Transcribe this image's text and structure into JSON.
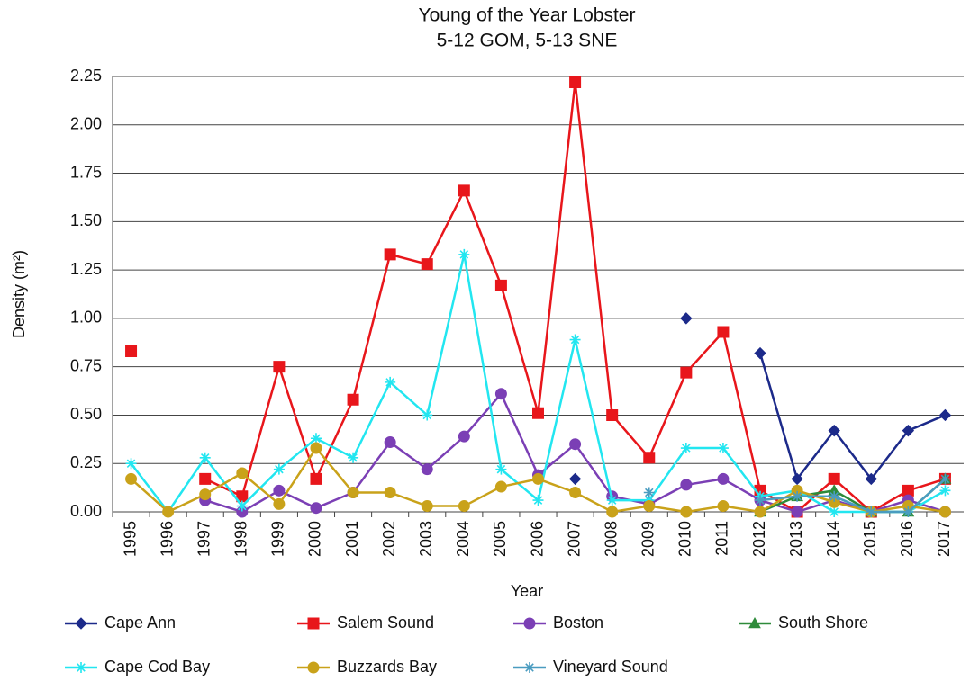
{
  "chart_data": {
    "type": "line",
    "title": "Young of the Year Lobster",
    "subtitle": "5-12 GOM, 5-13 SNE",
    "x_label": "Year",
    "y_label": "Density (m²)",
    "categories": [
      "1995",
      "1996",
      "1997",
      "1998",
      "1999",
      "2000",
      "2001",
      "2002",
      "2003",
      "2004",
      "2005",
      "2006",
      "2007",
      "2008",
      "2009",
      "2010",
      "2011",
      "2012",
      "2013",
      "2014",
      "2015",
      "2016",
      "2017"
    ],
    "ylim": [
      0,
      2.25
    ],
    "yticks": [
      {
        "value": 0,
        "label": "0.00"
      },
      {
        "value": 0.25,
        "label": "0.25"
      },
      {
        "value": 0.5,
        "label": "0.50"
      },
      {
        "value": 0.75,
        "label": "0.75"
      },
      {
        "value": 1,
        "label": "1.00"
      },
      {
        "value": 1.25,
        "label": "1.25"
      },
      {
        "value": 1.5,
        "label": "1.50"
      },
      {
        "value": 1.75,
        "label": "1.75"
      },
      {
        "value": 2,
        "label": "2.00"
      },
      {
        "value": 2.25,
        "label": "2.25"
      }
    ],
    "grid": true,
    "legend": "bottom",
    "series": [
      {
        "name": "Cape Ann",
        "color": "#1c2a8a",
        "marker": "diamond",
        "values": [
          null,
          null,
          null,
          null,
          null,
          null,
          null,
          null,
          null,
          null,
          null,
          null,
          0.17,
          null,
          null,
          1.0,
          null,
          0.82,
          0.17,
          0.42,
          0.17,
          0.42,
          0.5
        ]
      },
      {
        "name": "Salem Sound",
        "color": "#e8161b",
        "marker": "square",
        "values": [
          0.83,
          null,
          0.17,
          0.08,
          0.75,
          0.17,
          0.58,
          1.33,
          1.28,
          1.66,
          1.17,
          0.51,
          2.22,
          0.5,
          0.28,
          0.72,
          0.93,
          0.11,
          0,
          0.17,
          0,
          0.11,
          0.17
        ]
      },
      {
        "name": "Boston",
        "color": "#7b3fb5",
        "marker": "circle",
        "values": [
          null,
          null,
          0.06,
          0,
          0.11,
          0.02,
          0.1,
          0.36,
          0.22,
          0.39,
          0.61,
          0.19,
          0.35,
          0.08,
          0.04,
          0.14,
          0.17,
          0.06,
          0,
          0.06,
          0,
          0.06,
          0
        ]
      },
      {
        "name": "South Shore",
        "color": "#2e8b3a",
        "marker": "triangle",
        "values": [
          null,
          null,
          null,
          null,
          null,
          null,
          null,
          null,
          null,
          null,
          null,
          null,
          null,
          null,
          null,
          null,
          null,
          0,
          0.08,
          0.11,
          0,
          0,
          0.17
        ]
      },
      {
        "name": "Cape Cod Bay",
        "color": "#22e6f0",
        "marker": "star",
        "values": [
          0.25,
          0,
          0.28,
          0.03,
          0.22,
          0.38,
          0.28,
          0.67,
          0.5,
          1.33,
          0.22,
          0.06,
          0.89,
          0.06,
          0.06,
          0.33,
          0.33,
          0.08,
          0.11,
          0,
          0,
          0,
          0.11
        ]
      },
      {
        "name": "Buzzards Bay",
        "color": "#c9a21a",
        "marker": "circle",
        "values": [
          0.17,
          0,
          0.09,
          0.2,
          0.04,
          0.33,
          0.1,
          0.1,
          0.03,
          0.03,
          0.13,
          0.17,
          0.1,
          0,
          0.03,
          0,
          0.03,
          0,
          0.11,
          0.05,
          0,
          0.03,
          0
        ]
      },
      {
        "name": "Vineyard Sound",
        "color": "#4a9cc0",
        "marker": "star",
        "values": [
          null,
          null,
          null,
          null,
          null,
          null,
          null,
          null,
          null,
          null,
          null,
          null,
          null,
          null,
          0.1,
          null,
          null,
          0.06,
          0.08,
          0.08,
          0,
          0,
          0.17
        ]
      }
    ]
  }
}
